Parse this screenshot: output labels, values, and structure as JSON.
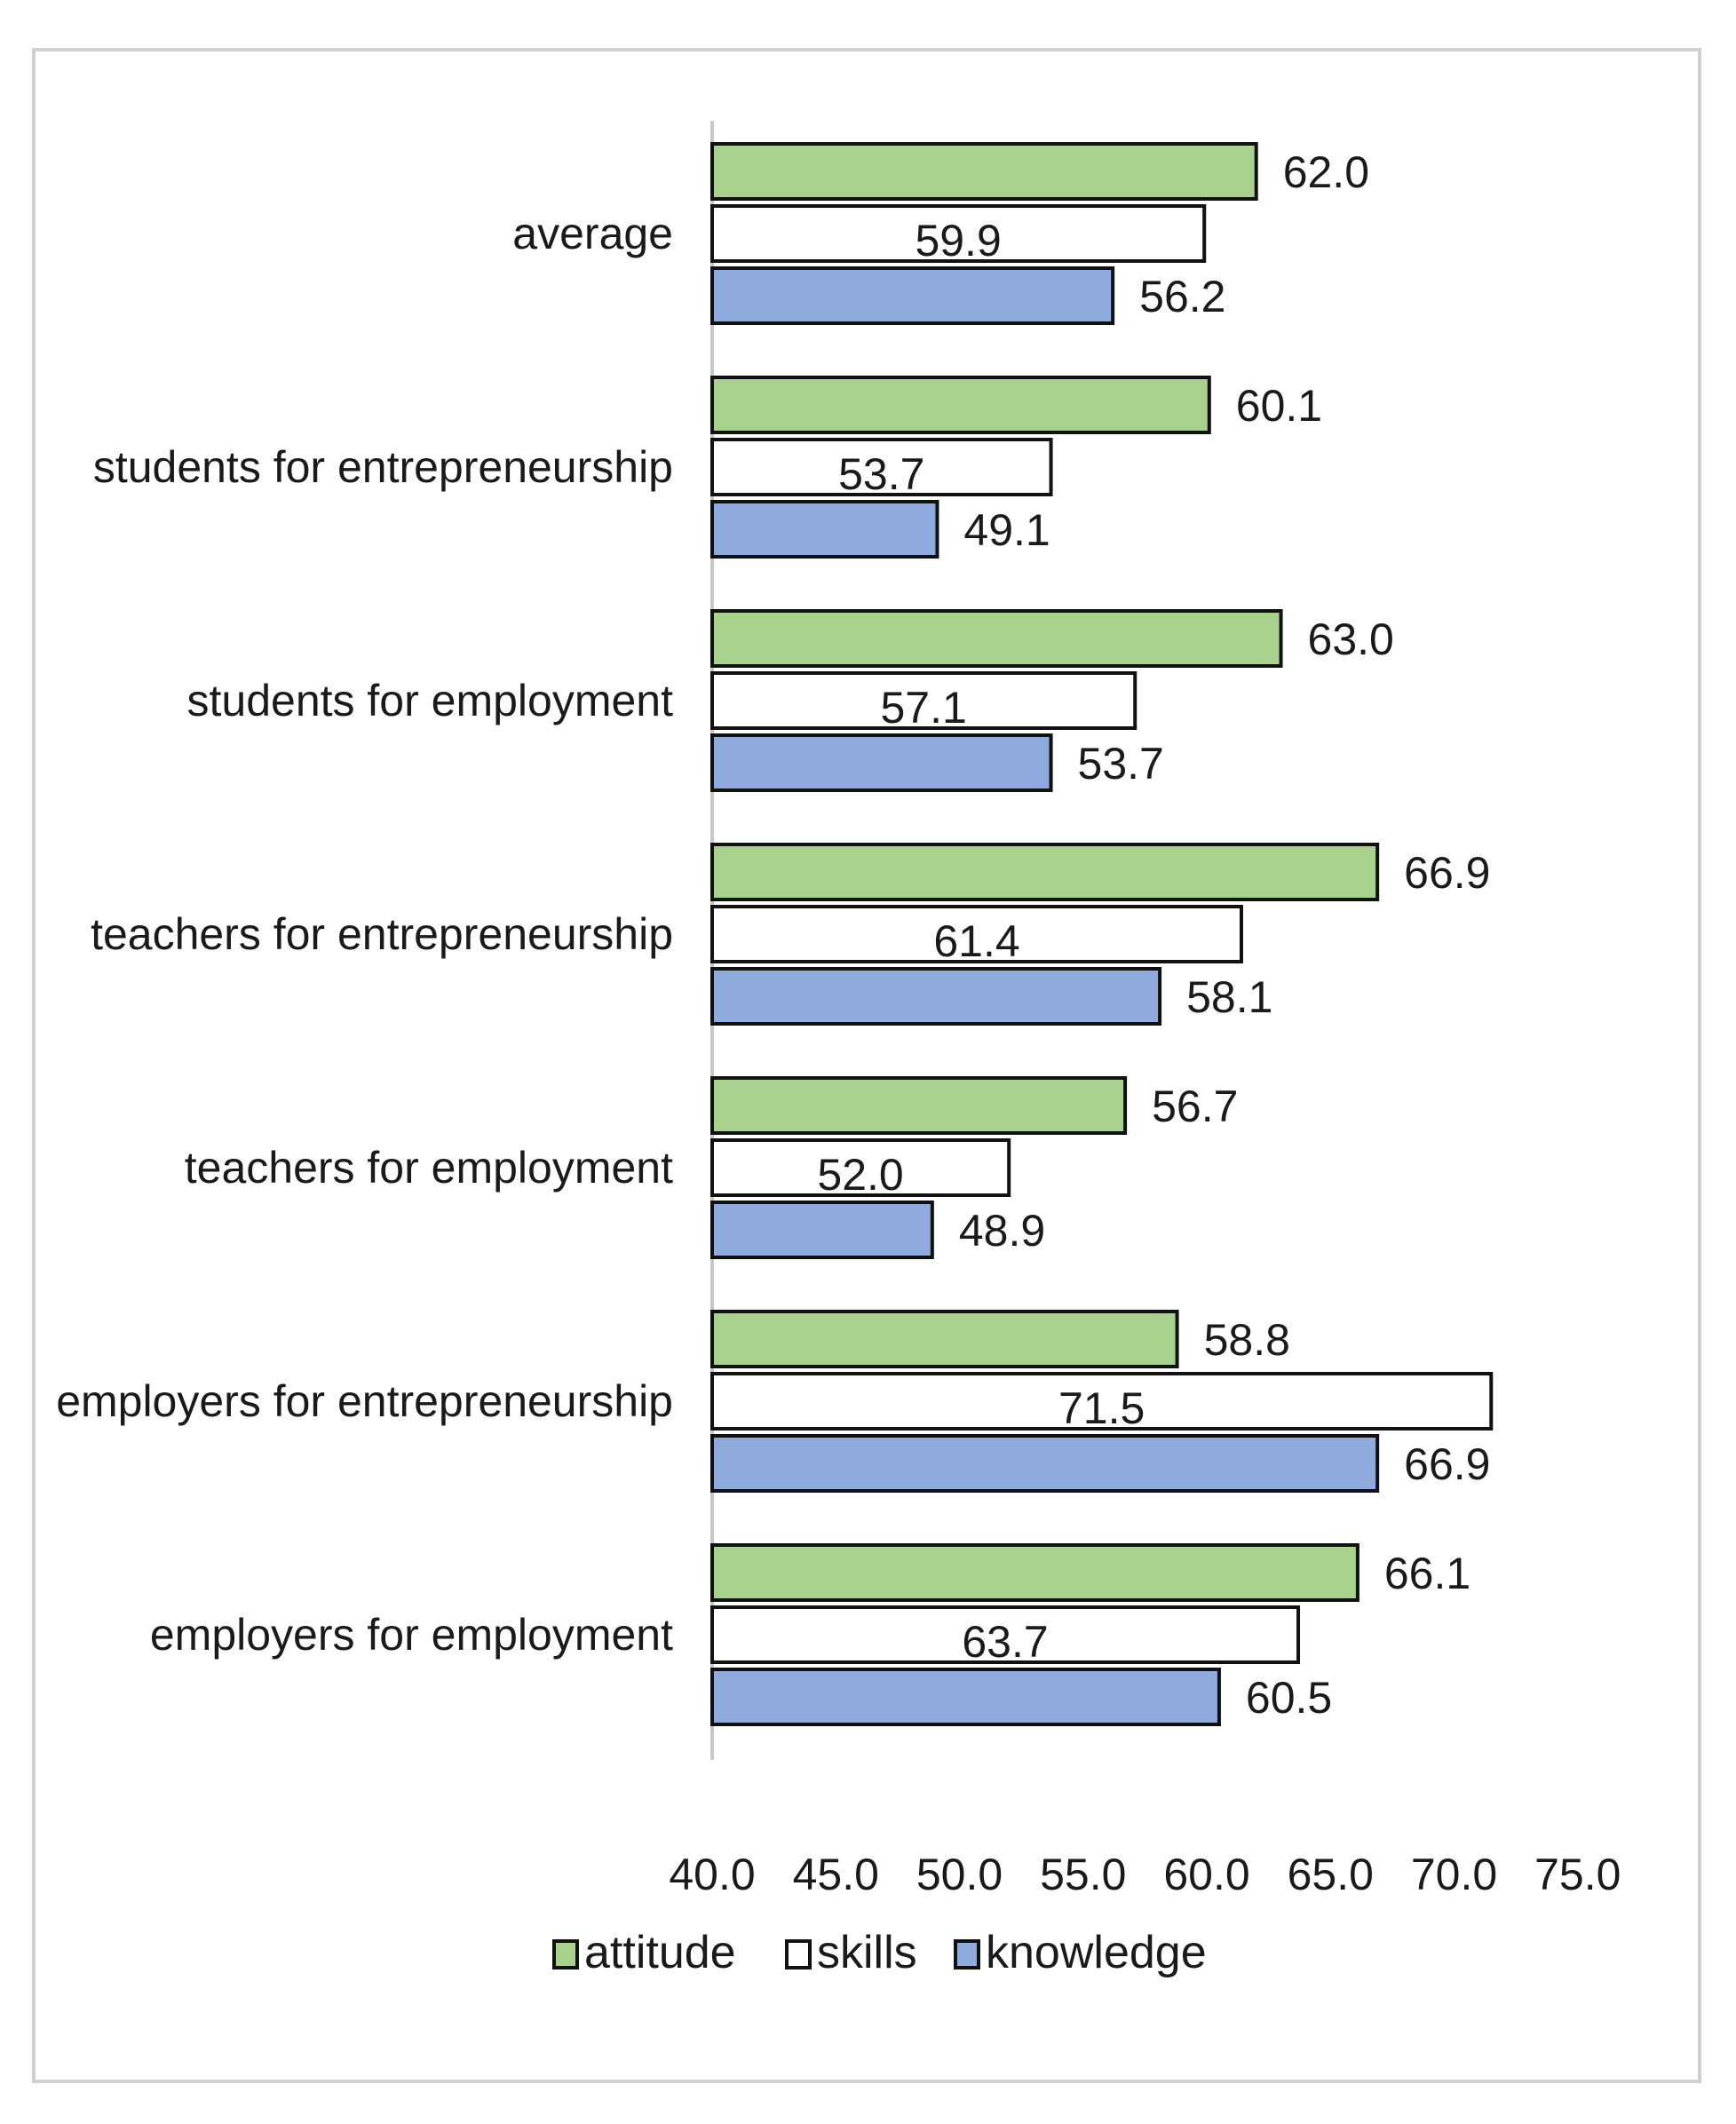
{
  "chart_data": {
    "type": "bar",
    "orientation": "horizontal",
    "categories": [
      "average",
      "students for entrepreneurship",
      "students for employment",
      "teachers for entrepreneurship",
      "teachers for employment",
      "employers for entrepreneurship",
      "employers for employment"
    ],
    "series": [
      {
        "name": "attitude",
        "color": "#a9d18e",
        "values": [
          62.0,
          60.1,
          63.0,
          66.9,
          56.7,
          58.8,
          66.1
        ]
      },
      {
        "name": "skills",
        "color": "#ffffff",
        "values": [
          59.9,
          53.7,
          57.1,
          61.4,
          52.0,
          71.5,
          63.7
        ]
      },
      {
        "name": "knowledge",
        "color": "#8faadc",
        "values": [
          56.2,
          49.1,
          53.7,
          58.1,
          48.9,
          66.9,
          60.5
        ]
      }
    ],
    "value_labels": [
      [
        "62.0",
        "59.9",
        "56.2"
      ],
      [
        "60.1",
        "53.7",
        "49.1"
      ],
      [
        "63.0",
        "57.1",
        "53.7"
      ],
      [
        "66.9",
        "61.4",
        "58.1"
      ],
      [
        "56.7",
        "52.0",
        "48.9"
      ],
      [
        "58.8",
        "71.5",
        "66.9"
      ],
      [
        "66.1",
        "63.7",
        "60.5"
      ]
    ],
    "x_ticks": [
      "40.0",
      "45.0",
      "50.0",
      "55.0",
      "60.0",
      "65.0",
      "70.0",
      "75.0"
    ],
    "xlim": [
      40,
      75
    ],
    "title": "",
    "xlabel": "",
    "ylabel": "",
    "grid": false,
    "legend": {
      "position": "bottom",
      "entries": [
        "attitude",
        "skills",
        "knowledge"
      ]
    }
  }
}
